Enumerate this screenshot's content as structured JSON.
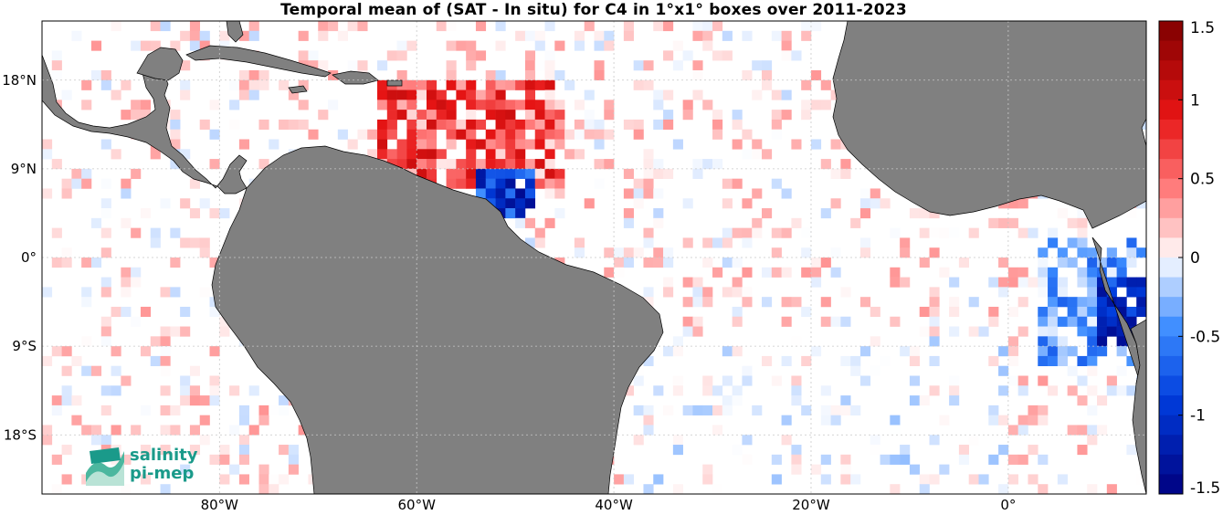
{
  "title": "Temporal mean of (SAT - In situ) for C4 in 1°x1° boxes over 2011-2023",
  "map": {
    "lon_range": [
      -98,
      14
    ],
    "lat_range": [
      -24,
      24
    ],
    "lon_ticks": [
      {
        "value": -80,
        "label": "80°W"
      },
      {
        "value": -60,
        "label": "60°W"
      },
      {
        "value": -40,
        "label": "40°W"
      },
      {
        "value": -20,
        "label": "20°W"
      },
      {
        "value": 0,
        "label": "0°"
      }
    ],
    "lat_ticks": [
      {
        "value": 18,
        "label": "18°N"
      },
      {
        "value": 9,
        "label": "9°N"
      },
      {
        "value": 0,
        "label": "0°"
      },
      {
        "value": -9,
        "label": "9°S"
      },
      {
        "value": -18,
        "label": "18°S"
      }
    ],
    "land_color": "#808080",
    "ocean_color": "#ffffff",
    "grid": true
  },
  "colorbar": {
    "min": -1.5,
    "max": 1.5,
    "levels": 24,
    "ticks": [
      {
        "value": 1.5,
        "label": "1.5"
      },
      {
        "value": 1,
        "label": "1"
      },
      {
        "value": 0.5,
        "label": "0.5"
      },
      {
        "value": 0,
        "label": "0"
      },
      {
        "value": -0.5,
        "label": "-0.5"
      },
      {
        "value": -1,
        "label": "-1"
      },
      {
        "value": -1.5,
        "label": "-1.5"
      }
    ],
    "low_color": "#00007f",
    "high_color": "#7f0000"
  },
  "logo": {
    "line1": "salinity",
    "line2": "pi-mep",
    "color": "#1a9a8a"
  }
}
